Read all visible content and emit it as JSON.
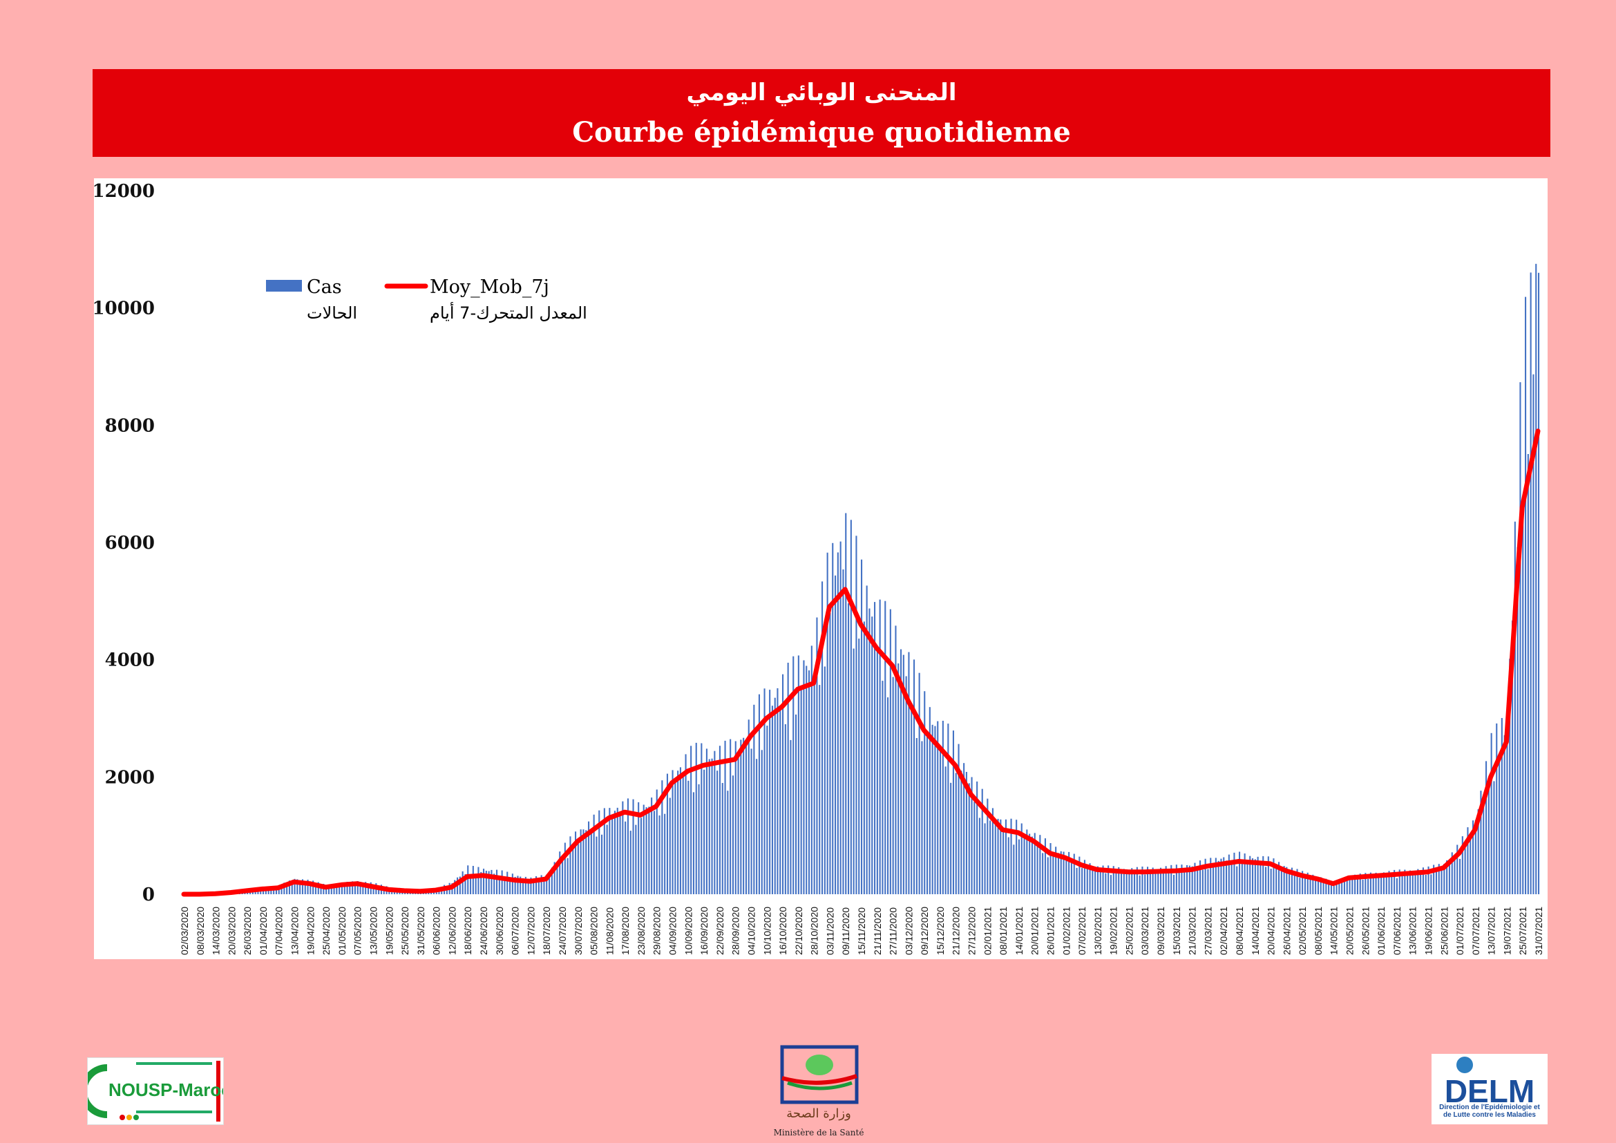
{
  "header": {
    "title_ar": "المنحنى الوبائي اليومي",
    "title_fr": "Courbe épidémique quotidienne"
  },
  "chart_data": {
    "type": "bar",
    "ylim": [
      0,
      12000
    ],
    "yticks": [
      "12000",
      "10000",
      "8000",
      "6000",
      "4000",
      "2000",
      "0"
    ],
    "series": [
      {
        "name": "Cas",
        "name_ar": "الحالات",
        "kind": "bar",
        "color": "#4472c4"
      },
      {
        "name": "Moy_Mob_7j",
        "name_ar": "المعدل المتحرك-7 أيام",
        "kind": "line",
        "color": "#ff0000"
      }
    ],
    "x_labels": [
      "02/03/2020",
      "08/03/2020",
      "14/03/2020",
      "20/03/2020",
      "26/03/2020",
      "01/04/2020",
      "07/04/2020",
      "13/04/2020",
      "19/04/2020",
      "25/04/2020",
      "01/05/2020",
      "07/05/2020",
      "13/05/2020",
      "19/05/2020",
      "25/05/2020",
      "31/05/2020",
      "06/06/2020",
      "12/06/2020",
      "18/06/2020",
      "24/06/2020",
      "30/06/2020",
      "06/07/2020",
      "12/07/2020",
      "18/07/2020",
      "24/07/2020",
      "30/07/2020",
      "05/08/2020",
      "11/08/2020",
      "17/08/2020",
      "23/08/2020",
      "29/08/2020",
      "04/09/2020",
      "10/09/2020",
      "16/09/2020",
      "22/09/2020",
      "28/09/2020",
      "04/10/2020",
      "10/10/2020",
      "16/10/2020",
      "22/10/2020",
      "28/10/2020",
      "03/11/2020",
      "09/11/2020",
      "15/11/2020",
      "21/11/2020",
      "27/11/2020",
      "03/12/2020",
      "09/12/2020",
      "15/12/2020",
      "21/12/2020",
      "27/12/2020",
      "02/01/2021",
      "08/01/2021",
      "14/01/2021",
      "20/01/2021",
      "26/01/2021",
      "01/02/2021",
      "07/02/2021",
      "13/02/2021",
      "19/02/2021",
      "25/02/2021",
      "03/03/2021",
      "09/03/2021",
      "15/03/2021",
      "21/03/2021",
      "27/03/2021",
      "02/04/2021",
      "08/04/2021",
      "14/04/2021",
      "20/04/2021",
      "26/04/2021",
      "02/05/2021",
      "08/05/2021",
      "14/05/2021",
      "20/05/2021",
      "26/05/2021",
      "01/06/2021",
      "07/06/2021",
      "13/06/2021",
      "19/06/2021",
      "25/06/2021",
      "01/07/2021",
      "07/07/2021",
      "13/07/2021",
      "19/07/2021",
      "25/07/2021",
      "31/07/2021"
    ],
    "moving_average_by_label": [
      0,
      0,
      10,
      30,
      60,
      90,
      110,
      210,
      180,
      120,
      160,
      180,
      130,
      80,
      60,
      50,
      70,
      120,
      300,
      320,
      280,
      240,
      220,
      260,
      600,
      900,
      1100,
      1300,
      1400,
      1350,
      1500,
      1900,
      2100,
      2200,
      2250,
      2300,
      2700,
      3000,
      3200,
      3500,
      3600,
      4900,
      5200,
      4600,
      4200,
      3900,
      3300,
      2800,
      2500,
      2200,
      1700,
      1400,
      1100,
      1050,
      900,
      700,
      620,
      500,
      420,
      400,
      380,
      380,
      390,
      400,
      420,
      480,
      520,
      560,
      540,
      520,
      400,
      320,
      260,
      180,
      280,
      300,
      320,
      340,
      360,
      380,
      450,
      700,
      1100,
      2000,
      2600,
      6600,
      7900
    ],
    "cases_by_label": [
      1,
      5,
      20,
      50,
      80,
      110,
      140,
      260,
      220,
      160,
      180,
      220,
      180,
      120,
      90,
      70,
      90,
      200,
      450,
      420,
      380,
      320,
      260,
      320,
      750,
      1050,
      1250,
      1400,
      1500,
      1450,
      1650,
      2000,
      2300,
      2400,
      2350,
      2450,
      2900,
      3300,
      3500,
      3800,
      4100,
      5600,
      6100,
      5300,
      4700,
      4400,
      3900,
      3200,
      2800,
      2500,
      1900,
      1500,
      1200,
      1150,
      1000,
      800,
      700,
      560,
      460,
      440,
      420,
      430,
      440,
      460,
      500,
      560,
      620,
      660,
      620,
      580,
      460,
      360,
      300,
      190,
      310,
      330,
      360,
      380,
      400,
      430,
      520,
      820,
      1300,
      2500,
      3000,
      9000,
      10600
    ]
  },
  "logos": {
    "left_text": "NOUSP-Maroc",
    "right_text": "DELM",
    "right_subtext": "Direction de l'Epidémiologie et de Lutte contre les Maladies",
    "center_caption": "Ministère de la Santé",
    "center_arabic": "وزارة الصحة"
  }
}
